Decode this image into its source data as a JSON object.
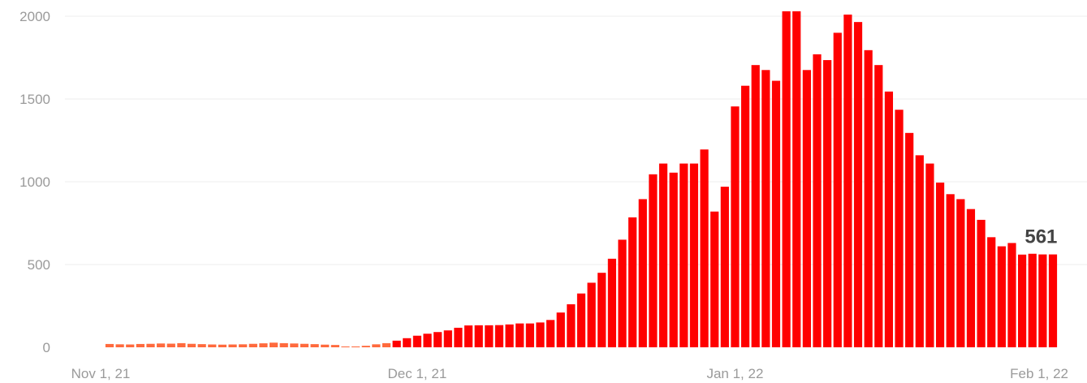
{
  "chart_data": {
    "type": "bar",
    "title": "",
    "xlabel": "",
    "ylabel": "",
    "ylim": [
      0,
      2000
    ],
    "yticks": [
      0,
      500,
      1000,
      1500,
      2000
    ],
    "ytick_labels": [
      "0",
      "500",
      "1000",
      "1500",
      "2000"
    ],
    "grid": true,
    "x_start_date": "2021-11-01",
    "x_tick_labels": [
      {
        "date": "2021-11-01",
        "label": "Nov 1, 21"
      },
      {
        "date": "2021-12-01",
        "label": "Dec 1, 21"
      },
      {
        "date": "2022-01-01",
        "label": "Jan 1, 22"
      },
      {
        "date": "2022-02-01",
        "label": "Feb 1, 22"
      }
    ],
    "colors": {
      "early": "#ff6a3d",
      "later": "#ff0000"
    },
    "series": [
      {
        "dates": [
          "2021-11-01",
          "2021-11-02",
          "2021-11-03",
          "2021-11-04",
          "2021-11-05",
          "2021-11-06",
          "2021-11-07",
          "2021-11-08",
          "2021-11-09",
          "2021-11-10",
          "2021-11-11",
          "2021-11-12",
          "2021-11-13",
          "2021-11-14",
          "2021-11-15",
          "2021-11-16",
          "2021-11-17",
          "2021-11-18",
          "2021-11-19",
          "2021-11-20",
          "2021-11-21",
          "2021-11-22",
          "2021-11-23",
          "2021-11-24",
          "2021-11-25",
          "2021-11-26",
          "2021-11-27",
          "2021-11-28",
          "2021-11-29",
          "2021-11-30",
          "2021-12-01",
          "2021-12-02",
          "2021-12-03",
          "2021-12-04",
          "2021-12-05",
          "2021-12-06",
          "2021-12-07",
          "2021-12-08",
          "2021-12-09",
          "2021-12-10",
          "2021-12-11",
          "2021-12-12",
          "2021-12-13",
          "2021-12-14",
          "2021-12-15",
          "2021-12-16",
          "2021-12-17",
          "2021-12-18",
          "2021-12-19",
          "2021-12-20",
          "2021-12-21",
          "2021-12-22",
          "2021-12-23",
          "2021-12-24",
          "2021-12-25",
          "2021-12-26",
          "2021-12-27",
          "2021-12-28",
          "2021-12-29",
          "2021-12-30",
          "2021-12-31",
          "2022-01-01",
          "2022-01-02",
          "2022-01-03",
          "2022-01-04",
          "2022-01-05",
          "2022-01-06",
          "2022-01-07",
          "2022-01-08",
          "2022-01-09",
          "2022-01-10",
          "2022-01-11",
          "2022-01-12",
          "2022-01-13",
          "2022-01-14",
          "2022-01-15",
          "2022-01-16",
          "2022-01-17",
          "2022-01-18",
          "2022-01-19",
          "2022-01-20",
          "2022-01-21",
          "2022-01-22",
          "2022-01-23",
          "2022-01-24",
          "2022-01-25",
          "2022-01-26",
          "2022-01-27",
          "2022-01-28",
          "2022-01-29",
          "2022-01-30",
          "2022-01-31",
          "2022-02-01"
        ],
        "values": [
          20,
          18,
          17,
          20,
          21,
          23,
          22,
          25,
          21,
          19,
          17,
          16,
          17,
          18,
          21,
          24,
          28,
          25,
          23,
          21,
          19,
          16,
          14,
          4,
          5,
          9,
          18,
          25,
          40,
          55,
          70,
          82,
          92,
          102,
          118,
          132,
          133,
          133,
          134,
          138,
          144,
          144,
          150,
          165,
          210,
          260,
          325,
          390,
          450,
          535,
          650,
          785,
          895,
          1045,
          1110,
          1055,
          1110,
          1110,
          1195,
          820,
          970,
          1455,
          1580,
          1705,
          1675,
          1610,
          2030,
          2030,
          1675,
          1770,
          1735,
          1900,
          2010,
          1965,
          1795,
          1705,
          1545,
          1435,
          1295,
          1160,
          1110,
          995,
          925,
          895,
          835,
          770,
          665,
          610,
          630,
          560,
          565,
          561,
          561
        ],
        "color_change_date": "2021-11-29"
      }
    ],
    "annotations": [
      {
        "date": "2022-01-31",
        "value": 561,
        "text": "561"
      }
    ]
  }
}
